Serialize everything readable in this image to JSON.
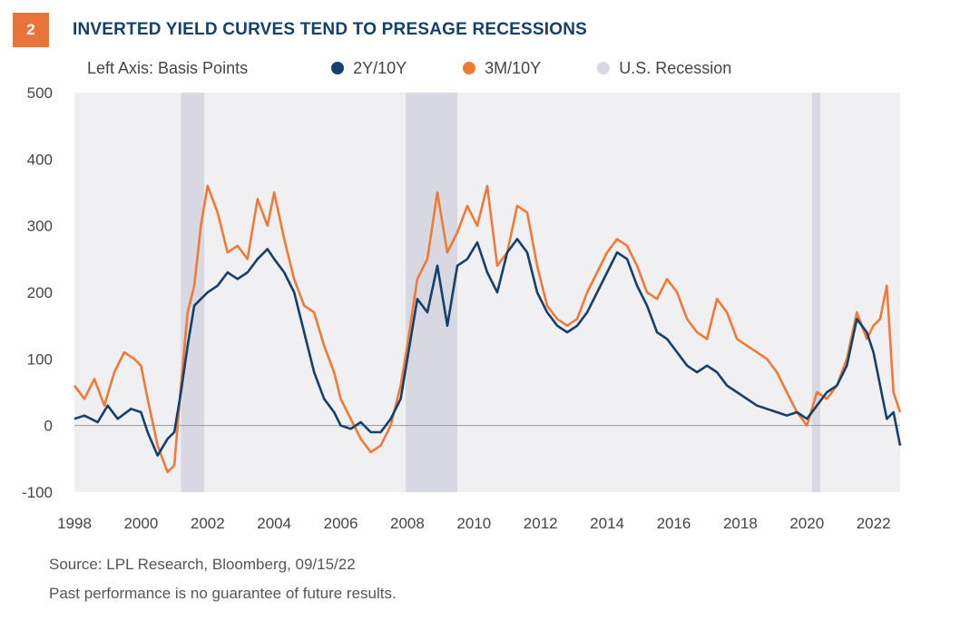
{
  "header": {
    "badge": "2",
    "title": "INVERTED YIELD CURVES TEND TO PRESAGE RECESSIONS"
  },
  "legend": {
    "axis_note": "Left Axis: Basis Points",
    "items": [
      {
        "label": "2Y/10Y",
        "color": "#14406b"
      },
      {
        "label": "3M/10Y",
        "color": "#ef7a35"
      },
      {
        "label": "U.S. Recession",
        "color": "#d7d8e1"
      }
    ]
  },
  "footer": {
    "source": "Source: LPL Research, Bloomberg,  09/15/22",
    "disclaimer": "Past performance is no guarantee of future results."
  },
  "chart_data": {
    "type": "line",
    "xlabel": "",
    "ylabel": "",
    "xlim": [
      1998,
      2022.8
    ],
    "ylim": [
      -100,
      500
    ],
    "yticks": [
      -100,
      0,
      100,
      200,
      300,
      400,
      500
    ],
    "xtick_labels": [
      "1998",
      "2000",
      "2002",
      "2004",
      "2006",
      "2008",
      "2010",
      "2012",
      "2014",
      "2016",
      "2018",
      "2020",
      "2022"
    ],
    "recessions": [
      [
        2001.2,
        2001.9
      ],
      [
        2007.95,
        2009.5
      ],
      [
        2020.15,
        2020.4
      ]
    ],
    "series": [
      {
        "name": "2Y/10Y",
        "color": "#14406b",
        "x": [
          1998.0,
          1998.3,
          1998.7,
          1999.0,
          1999.3,
          1999.7,
          2000.0,
          2000.2,
          2000.5,
          2000.8,
          2001.0,
          2001.2,
          2001.4,
          2001.6,
          2001.8,
          2002.0,
          2002.3,
          2002.6,
          2002.9,
          2003.2,
          2003.5,
          2003.8,
          2004.0,
          2004.3,
          2004.6,
          2004.9,
          2005.2,
          2005.5,
          2005.8,
          2006.0,
          2006.3,
          2006.6,
          2006.9,
          2007.2,
          2007.5,
          2007.8,
          2008.0,
          2008.3,
          2008.6,
          2008.9,
          2009.2,
          2009.5,
          2009.8,
          2010.1,
          2010.4,
          2010.7,
          2011.0,
          2011.3,
          2011.6,
          2011.9,
          2012.2,
          2012.5,
          2012.8,
          2013.1,
          2013.4,
          2013.7,
          2014.0,
          2014.3,
          2014.6,
          2014.9,
          2015.2,
          2015.5,
          2015.8,
          2016.1,
          2016.4,
          2016.7,
          2017.0,
          2017.3,
          2017.6,
          2017.9,
          2018.2,
          2018.5,
          2018.8,
          2019.1,
          2019.4,
          2019.7,
          2020.0,
          2020.3,
          2020.6,
          2020.9,
          2021.2,
          2021.5,
          2021.8,
          2022.0,
          2022.2,
          2022.4,
          2022.6,
          2022.8
        ],
        "y": [
          10,
          15,
          5,
          30,
          10,
          25,
          20,
          -10,
          -45,
          -20,
          -10,
          50,
          120,
          180,
          190,
          200,
          210,
          230,
          220,
          230,
          250,
          265,
          250,
          230,
          200,
          140,
          80,
          40,
          20,
          0,
          -5,
          5,
          -10,
          -10,
          10,
          40,
          100,
          190,
          170,
          240,
          150,
          240,
          250,
          275,
          230,
          200,
          260,
          280,
          260,
          200,
          170,
          150,
          140,
          150,
          170,
          200,
          230,
          260,
          250,
          210,
          180,
          140,
          130,
          110,
          90,
          80,
          90,
          80,
          60,
          50,
          40,
          30,
          25,
          20,
          15,
          20,
          10,
          30,
          50,
          60,
          90,
          160,
          140,
          110,
          60,
          10,
          20,
          -30
        ]
      },
      {
        "name": "3M/10Y",
        "color": "#ef7a35",
        "x": [
          1998.0,
          1998.3,
          1998.6,
          1998.9,
          1999.2,
          1999.5,
          1999.8,
          2000.0,
          2000.2,
          2000.5,
          2000.8,
          2001.0,
          2001.2,
          2001.4,
          2001.6,
          2001.8,
          2002.0,
          2002.3,
          2002.6,
          2002.9,
          2003.2,
          2003.5,
          2003.8,
          2004.0,
          2004.3,
          2004.6,
          2004.9,
          2005.2,
          2005.5,
          2005.8,
          2006.0,
          2006.3,
          2006.6,
          2006.9,
          2007.2,
          2007.5,
          2007.8,
          2008.0,
          2008.3,
          2008.6,
          2008.9,
          2009.2,
          2009.5,
          2009.8,
          2010.1,
          2010.4,
          2010.7,
          2011.0,
          2011.3,
          2011.6,
          2011.9,
          2012.2,
          2012.5,
          2012.8,
          2013.1,
          2013.4,
          2013.7,
          2014.0,
          2014.3,
          2014.6,
          2014.9,
          2015.2,
          2015.5,
          2015.8,
          2016.1,
          2016.4,
          2016.7,
          2017.0,
          2017.3,
          2017.6,
          2017.9,
          2018.2,
          2018.5,
          2018.8,
          2019.1,
          2019.4,
          2019.7,
          2020.0,
          2020.3,
          2020.6,
          2020.9,
          2021.2,
          2021.5,
          2021.8,
          2022.0,
          2022.2,
          2022.4,
          2022.6,
          2022.8
        ],
        "y": [
          60,
          40,
          70,
          30,
          80,
          110,
          100,
          90,
          40,
          -30,
          -70,
          -60,
          60,
          170,
          210,
          300,
          360,
          320,
          260,
          270,
          250,
          340,
          300,
          350,
          280,
          220,
          180,
          170,
          120,
          80,
          40,
          10,
          -20,
          -40,
          -30,
          0,
          60,
          120,
          220,
          250,
          350,
          260,
          290,
          330,
          300,
          360,
          240,
          260,
          330,
          320,
          240,
          180,
          160,
          150,
          160,
          200,
          230,
          260,
          280,
          270,
          240,
          200,
          190,
          220,
          200,
          160,
          140,
          130,
          190,
          170,
          130,
          120,
          110,
          100,
          80,
          50,
          20,
          0,
          50,
          40,
          60,
          100,
          170,
          130,
          150,
          160,
          210,
          50,
          20
        ]
      }
    ]
  }
}
